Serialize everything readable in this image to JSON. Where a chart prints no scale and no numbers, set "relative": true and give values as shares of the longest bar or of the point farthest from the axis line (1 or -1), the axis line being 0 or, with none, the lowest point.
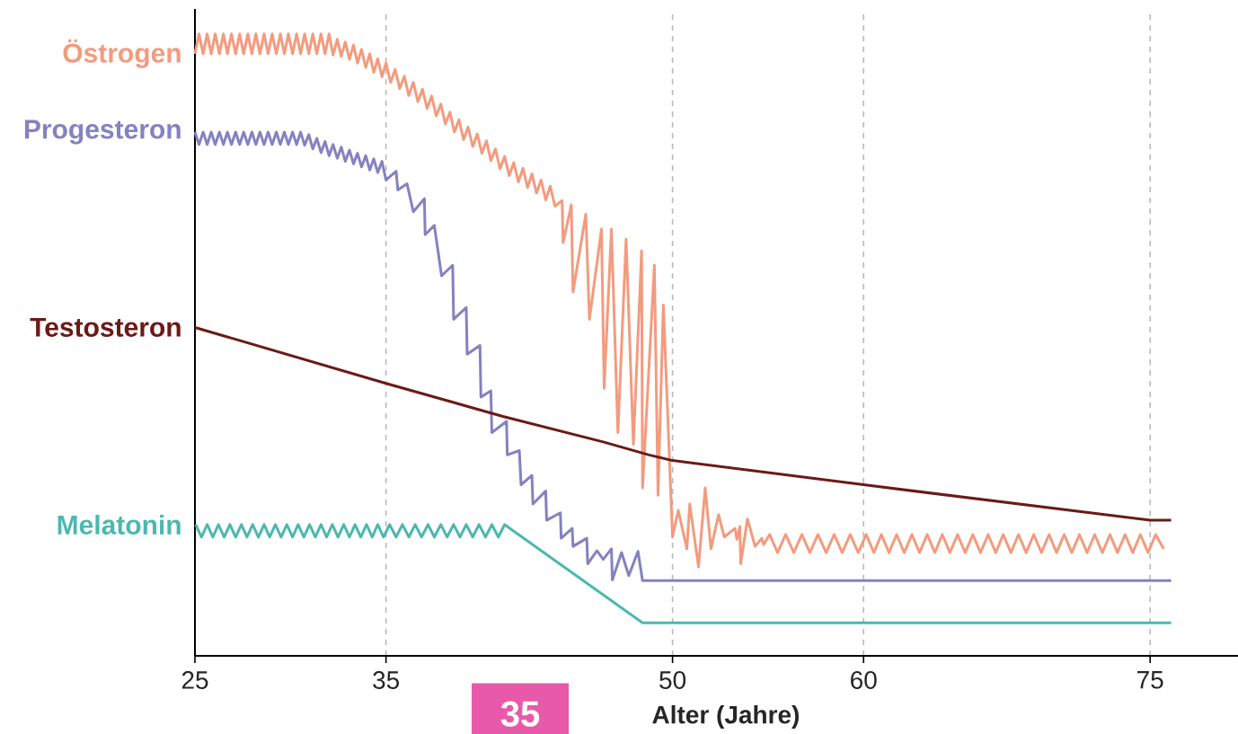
{
  "chart_data": {
    "type": "line",
    "relative": true,
    "xlabel": "Alter (Jahre)",
    "annotations": [
      "35"
    ],
    "xlim": [
      25,
      79.6
    ],
    "xticks": [
      25,
      35,
      50,
      60,
      75
    ],
    "grid": "x",
    "series": [
      {
        "name": "Östrogen",
        "color": "#f39b7f",
        "x": [
          25.0,
          25.21,
          25.43,
          25.64,
          25.85,
          26.06,
          26.28,
          26.49,
          26.7,
          26.91,
          27.13,
          27.34,
          27.55,
          27.77,
          27.98,
          28.19,
          28.4,
          28.62,
          28.83,
          29.04,
          29.26,
          29.47,
          29.68,
          29.89,
          30.11,
          30.32,
          30.53,
          30.74,
          30.96,
          31.17,
          31.38,
          31.6,
          31.81,
          32.02,
          32.23,
          32.45,
          32.66,
          32.87,
          33.09,
          33.3,
          33.51,
          33.72,
          33.94,
          34.15,
          34.36,
          34.57,
          34.79,
          35.0,
          35.24,
          35.48,
          35.72,
          35.96,
          36.19,
          36.43,
          36.67,
          36.91,
          37.15,
          37.39,
          37.63,
          37.87,
          38.11,
          38.35,
          38.58,
          38.82,
          39.06,
          39.3,
          39.54,
          39.78,
          40.02,
          40.26,
          40.49,
          40.73,
          40.97,
          41.21,
          41.45,
          41.69,
          41.93,
          42.17,
          42.41,
          42.64,
          42.88,
          43.12,
          43.36,
          43.6,
          43.84,
          44.22,
          44.27,
          44.7,
          44.79,
          45.46,
          45.65,
          46.28,
          46.42,
          46.8,
          47.14,
          47.57,
          47.95,
          48.38,
          48.43,
          49.05,
          49.24,
          49.52,
          50.0,
          50.3,
          50.75,
          50.9,
          51.36,
          51.71,
          52.01,
          52.41,
          52.71,
          53.27,
          53.37,
          53.52,
          53.57,
          53.92,
          54.32,
          54.67,
          54.77,
          55.08,
          55.5,
          55.92,
          56.35,
          56.77,
          57.19,
          57.61,
          58.04,
          58.46,
          58.88,
          59.3,
          59.72,
          60.14,
          60.54,
          60.93,
          61.33,
          61.73,
          62.13,
          62.53,
          62.93,
          63.33,
          63.73,
          64.12,
          64.52,
          64.92,
          65.32,
          65.72,
          66.12,
          66.52,
          66.92,
          67.31,
          67.71,
          68.11,
          68.51,
          68.91,
          69.31,
          69.71,
          70.1,
          70.5,
          70.9,
          71.3,
          71.7,
          72.1,
          72.5,
          72.9,
          73.29,
          73.69,
          74.09,
          74.49,
          74.89,
          75.29,
          75.71
        ],
        "values": [
          0.968,
          1.0,
          0.968,
          1.0,
          0.968,
          1.0,
          0.968,
          1.0,
          0.968,
          1.0,
          0.968,
          1.0,
          0.968,
          1.0,
          0.968,
          1.0,
          0.968,
          1.0,
          0.968,
          1.0,
          0.968,
          1.0,
          0.968,
          1.0,
          0.968,
          1.0,
          0.968,
          1.0,
          0.968,
          1.0,
          0.968,
          1.0,
          0.968,
          1.0,
          0.966,
          0.991,
          0.964,
          0.987,
          0.959,
          0.982,
          0.953,
          0.975,
          0.946,
          0.968,
          0.938,
          0.96,
          0.931,
          0.953,
          0.922,
          0.943,
          0.912,
          0.932,
          0.901,
          0.922,
          0.891,
          0.911,
          0.88,
          0.9,
          0.868,
          0.887,
          0.855,
          0.874,
          0.842,
          0.862,
          0.83,
          0.85,
          0.819,
          0.839,
          0.808,
          0.828,
          0.796,
          0.815,
          0.783,
          0.803,
          0.772,
          0.793,
          0.762,
          0.784,
          0.753,
          0.775,
          0.744,
          0.765,
          0.733,
          0.755,
          0.723,
          0.732,
          0.664,
          0.725,
          0.585,
          0.71,
          0.541,
          0.686,
          0.43,
          0.686,
          0.359,
          0.67,
          0.34,
          0.651,
          0.27,
          0.628,
          0.258,
          0.564,
          0.191,
          0.234,
          0.172,
          0.244,
          0.143,
          0.27,
          0.172,
          0.227,
          0.191,
          0.205,
          0.187,
          0.208,
          0.148,
          0.22,
          0.176,
          0.189,
          0.179,
          0.195,
          0.166,
          0.195,
          0.166,
          0.195,
          0.166,
          0.195,
          0.166,
          0.195,
          0.166,
          0.195,
          0.166,
          0.195,
          0.166,
          0.195,
          0.166,
          0.195,
          0.166,
          0.195,
          0.166,
          0.195,
          0.166,
          0.195,
          0.166,
          0.195,
          0.166,
          0.195,
          0.166,
          0.195,
          0.166,
          0.195,
          0.166,
          0.195,
          0.166,
          0.195,
          0.166,
          0.195,
          0.166,
          0.195,
          0.166,
          0.195,
          0.166,
          0.195,
          0.166,
          0.195,
          0.166,
          0.195,
          0.166,
          0.195,
          0.166,
          0.195,
          0.172
        ]
      },
      {
        "name": "Progesteron",
        "color": "#8482c0",
        "x": [
          25.0,
          25.21,
          25.43,
          25.64,
          25.85,
          26.06,
          26.28,
          26.49,
          26.7,
          26.91,
          27.13,
          27.34,
          27.55,
          27.77,
          27.98,
          28.19,
          28.4,
          28.62,
          28.83,
          29.04,
          29.26,
          29.47,
          29.68,
          29.89,
          30.11,
          30.32,
          30.53,
          30.74,
          30.96,
          31.17,
          31.38,
          31.6,
          31.81,
          32.02,
          32.23,
          32.45,
          32.66,
          32.87,
          33.09,
          33.3,
          33.51,
          33.72,
          33.94,
          34.15,
          34.36,
          34.57,
          34.79,
          35.0,
          35.53,
          35.62,
          36.1,
          36.43,
          37.01,
          37.05,
          37.53,
          37.91,
          38.49,
          38.54,
          39.2,
          39.25,
          39.92,
          39.97,
          40.49,
          40.54,
          41.31,
          41.35,
          41.98,
          42.07,
          42.64,
          42.69,
          43.36,
          43.41,
          44.13,
          44.17,
          44.75,
          44.79,
          45.51,
          45.56,
          46.04,
          46.37,
          46.8,
          46.85,
          47.33,
          47.71,
          48.19,
          48.43,
          76.1
        ],
        "values": [
          0.842,
          0.822,
          0.842,
          0.822,
          0.842,
          0.822,
          0.842,
          0.822,
          0.842,
          0.822,
          0.842,
          0.822,
          0.842,
          0.822,
          0.842,
          0.822,
          0.842,
          0.822,
          0.842,
          0.822,
          0.842,
          0.822,
          0.842,
          0.822,
          0.842,
          0.822,
          0.842,
          0.821,
          0.838,
          0.815,
          0.832,
          0.809,
          0.827,
          0.804,
          0.822,
          0.8,
          0.818,
          0.795,
          0.813,
          0.791,
          0.808,
          0.786,
          0.804,
          0.781,
          0.799,
          0.777,
          0.795,
          0.765,
          0.779,
          0.749,
          0.759,
          0.714,
          0.735,
          0.677,
          0.692,
          0.611,
          0.628,
          0.541,
          0.56,
          0.485,
          0.499,
          0.416,
          0.426,
          0.359,
          0.377,
          0.323,
          0.33,
          0.275,
          0.29,
          0.244,
          0.265,
          0.218,
          0.23,
          0.189,
          0.205,
          0.176,
          0.189,
          0.148,
          0.169,
          0.155,
          0.172,
          0.122,
          0.166,
          0.129,
          0.168,
          0.121,
          0.121
        ]
      },
      {
        "name": "Testosteron",
        "color": "#6b1a16",
        "x": [
          25,
          35,
          41.12,
          46.37,
          48.77,
          50,
          60,
          75,
          76.1
        ],
        "values": [
          0.528,
          0.438,
          0.385,
          0.344,
          0.323,
          0.314,
          0.275,
          0.218,
          0.218
        ]
      },
      {
        "name": "Melatonin",
        "color": "#4cb8b0",
        "x": [
          25.04,
          25.34,
          25.64,
          25.94,
          26.23,
          26.53,
          26.83,
          27.13,
          27.43,
          27.72,
          28.02,
          28.32,
          28.62,
          28.91,
          29.21,
          29.51,
          29.81,
          30.11,
          30.4,
          30.7,
          31.0,
          31.3,
          31.6,
          31.89,
          32.19,
          32.49,
          32.79,
          33.09,
          33.38,
          33.68,
          33.98,
          34.28,
          34.57,
          34.87,
          35.19,
          35.53,
          35.86,
          36.2,
          36.53,
          36.86,
          37.2,
          37.53,
          37.87,
          38.2,
          38.54,
          38.87,
          39.2,
          39.54,
          39.87,
          40.21,
          40.54,
          40.88,
          41.21,
          48.43,
          76.1
        ],
        "values": [
          0.211,
          0.191,
          0.211,
          0.191,
          0.211,
          0.191,
          0.211,
          0.191,
          0.211,
          0.191,
          0.211,
          0.191,
          0.211,
          0.191,
          0.211,
          0.191,
          0.211,
          0.191,
          0.211,
          0.191,
          0.211,
          0.191,
          0.211,
          0.191,
          0.211,
          0.191,
          0.211,
          0.191,
          0.211,
          0.191,
          0.211,
          0.191,
          0.211,
          0.191,
          0.211,
          0.191,
          0.211,
          0.191,
          0.211,
          0.191,
          0.211,
          0.191,
          0.211,
          0.191,
          0.211,
          0.191,
          0.211,
          0.191,
          0.211,
          0.191,
          0.211,
          0.191,
          0.211,
          0.053,
          0.053
        ]
      }
    ]
  }
}
